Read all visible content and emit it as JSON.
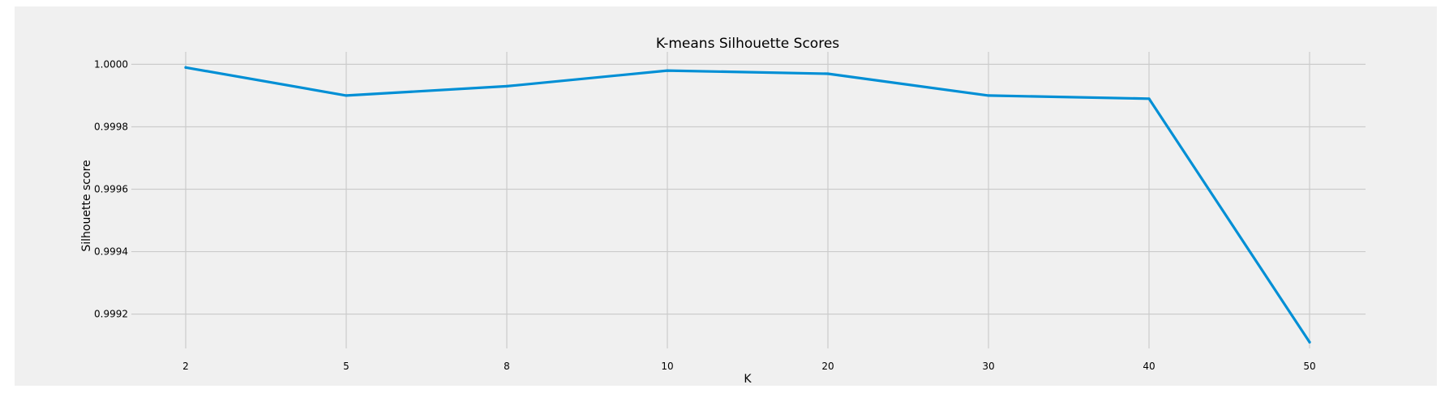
{
  "chart_data": {
    "type": "line",
    "title": "K-means Silhouette Scores",
    "xlabel": "K",
    "ylabel": "Silhouette score",
    "x": [
      "2",
      "5",
      "8",
      "10",
      "20",
      "30",
      "40",
      "50"
    ],
    "series": [
      {
        "values": [
          0.99999,
          0.9999,
          0.99993,
          0.99998,
          0.99997,
          0.9999,
          0.99989,
          0.99911
        ]
      }
    ],
    "y_ticks": [
      "0.9992",
      "0.9994",
      "0.9996",
      "0.9998",
      "1.0000"
    ],
    "ylim": [
      0.99909,
      1.00004
    ],
    "grid": true,
    "line_color": "#008fd5",
    "grid_color": "#cbcbcb",
    "background_color": "#f0f0f0"
  }
}
